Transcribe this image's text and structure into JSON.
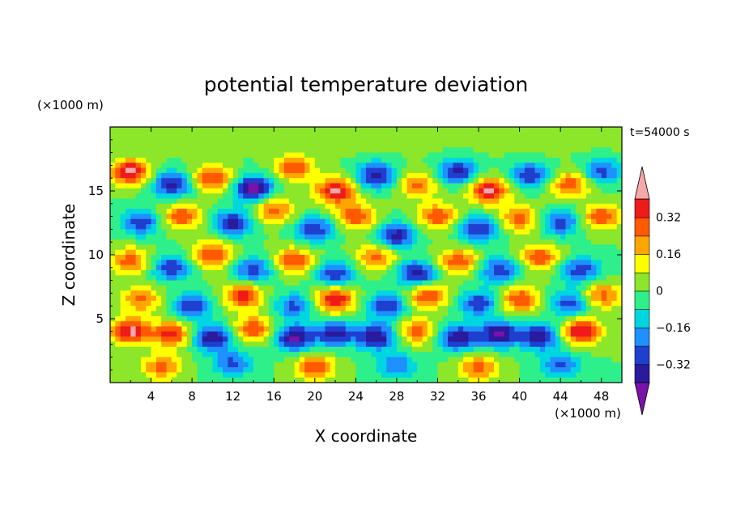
{
  "chart_data": {
    "type": "heatmap",
    "title": "potential temperature deviation",
    "xlabel": "X coordinate",
    "ylabel": "Z coordinate",
    "x_unit_label": "(×1000 m)",
    "y_unit_label": "(×1000 m)",
    "time_label": "t=54000 s",
    "xlim": [
      0,
      50
    ],
    "ylim": [
      0,
      20
    ],
    "x_ticks": [
      "4",
      "8",
      "12",
      "16",
      "20",
      "24",
      "28",
      "32",
      "36",
      "40",
      "44",
      "48"
    ],
    "x_tick_values": [
      4,
      8,
      12,
      16,
      20,
      24,
      28,
      32,
      36,
      40,
      44,
      48
    ],
    "y_ticks": [
      "5",
      "10",
      "15"
    ],
    "y_tick_values": [
      5,
      10,
      15
    ],
    "colorbar": {
      "levels": [
        -0.4,
        -0.32,
        -0.24,
        -0.16,
        -0.08,
        0,
        0.08,
        0.16,
        0.24,
        0.32,
        0.4
      ],
      "tick_labels": [
        "0.32",
        "0.16",
        "0",
        "−0.16",
        "−0.32"
      ],
      "tick_values": [
        0.32,
        0.16,
        0,
        -0.16,
        -0.32
      ],
      "colors": [
        "#7a12a8",
        "#2a1a9e",
        "#1f3fcf",
        "#1e90ff",
        "#00d6e0",
        "#2ef08a",
        "#8ce62a",
        "#ffff00",
        "#ffa500",
        "#ff5a00",
        "#ef1a1a",
        "#f6a8a8"
      ]
    },
    "cells": [
      {
        "x": 2,
        "z": 16.5,
        "v": 0.42
      },
      {
        "x": 6,
        "z": 15.5,
        "v": -0.36
      },
      {
        "x": 10,
        "z": 16,
        "v": 0.34
      },
      {
        "x": 14,
        "z": 15.2,
        "v": -0.44
      },
      {
        "x": 18,
        "z": 16.8,
        "v": 0.3
      },
      {
        "x": 22,
        "z": 15,
        "v": 0.42
      },
      {
        "x": 26,
        "z": 16.2,
        "v": -0.38
      },
      {
        "x": 30,
        "z": 15.5,
        "v": 0.26
      },
      {
        "x": 34,
        "z": 16.5,
        "v": -0.34
      },
      {
        "x": 37,
        "z": 15,
        "v": 0.42
      },
      {
        "x": 41,
        "z": 16.2,
        "v": -0.32
      },
      {
        "x": 45,
        "z": 15.5,
        "v": 0.3
      },
      {
        "x": 48,
        "z": 16.5,
        "v": -0.28
      },
      {
        "x": 3,
        "z": 12.5,
        "v": -0.3
      },
      {
        "x": 7,
        "z": 13,
        "v": 0.3
      },
      {
        "x": 12,
        "z": 12.5,
        "v": -0.36
      },
      {
        "x": 16,
        "z": 13.5,
        "v": 0.28
      },
      {
        "x": 20,
        "z": 12,
        "v": -0.3
      },
      {
        "x": 24,
        "z": 13,
        "v": 0.32
      },
      {
        "x": 28,
        "z": 11.5,
        "v": -0.36
      },
      {
        "x": 32,
        "z": 13,
        "v": 0.3
      },
      {
        "x": 36,
        "z": 12,
        "v": -0.34
      },
      {
        "x": 40,
        "z": 12.8,
        "v": 0.28
      },
      {
        "x": 44,
        "z": 12.5,
        "v": -0.3
      },
      {
        "x": 48,
        "z": 13,
        "v": 0.3
      },
      {
        "x": 2,
        "z": 9.5,
        "v": 0.3
      },
      {
        "x": 6,
        "z": 9,
        "v": -0.32
      },
      {
        "x": 10,
        "z": 10,
        "v": 0.34
      },
      {
        "x": 14,
        "z": 8.8,
        "v": -0.3
      },
      {
        "x": 18,
        "z": 9.5,
        "v": 0.32
      },
      {
        "x": 22,
        "z": 8.5,
        "v": -0.32
      },
      {
        "x": 26,
        "z": 9.8,
        "v": 0.28
      },
      {
        "x": 30,
        "z": 8.5,
        "v": -0.38
      },
      {
        "x": 34,
        "z": 9.5,
        "v": 0.3
      },
      {
        "x": 38,
        "z": 8.8,
        "v": -0.3
      },
      {
        "x": 42,
        "z": 9.8,
        "v": 0.3
      },
      {
        "x": 46,
        "z": 8.8,
        "v": -0.3
      },
      {
        "x": 3,
        "z": 6.5,
        "v": 0.26
      },
      {
        "x": 8,
        "z": 6,
        "v": -0.3
      },
      {
        "x": 13,
        "z": 6.8,
        "v": 0.36
      },
      {
        "x": 18,
        "z": 6,
        "v": -0.26
      },
      {
        "x": 22,
        "z": 6.5,
        "v": 0.4
      },
      {
        "x": 27,
        "z": 6,
        "v": -0.32
      },
      {
        "x": 31,
        "z": 6.8,
        "v": 0.34
      },
      {
        "x": 36,
        "z": 6.2,
        "v": -0.3
      },
      {
        "x": 40,
        "z": 6.5,
        "v": 0.32
      },
      {
        "x": 45,
        "z": 6.2,
        "v": -0.3
      },
      {
        "x": 48,
        "z": 6.8,
        "v": 0.28
      },
      {
        "x": 2,
        "z": 4,
        "v": 0.42
      },
      {
        "x": 6,
        "z": 3.8,
        "v": 0.36
      },
      {
        "x": 10,
        "z": 3.5,
        "v": -0.4
      },
      {
        "x": 14,
        "z": 4.2,
        "v": 0.3
      },
      {
        "x": 18,
        "z": 3.5,
        "v": -0.42
      },
      {
        "x": 22,
        "z": 3.8,
        "v": -0.36
      },
      {
        "x": 26,
        "z": 3.6,
        "v": -0.4
      },
      {
        "x": 30,
        "z": 4,
        "v": 0.28
      },
      {
        "x": 34,
        "z": 3.5,
        "v": -0.4
      },
      {
        "x": 38,
        "z": 3.8,
        "v": -0.42
      },
      {
        "x": 42,
        "z": 3.6,
        "v": -0.38
      },
      {
        "x": 46,
        "z": 4,
        "v": 0.42
      },
      {
        "x": 5,
        "z": 1.2,
        "v": 0.26
      },
      {
        "x": 12,
        "z": 1.5,
        "v": -0.26
      },
      {
        "x": 20,
        "z": 1.2,
        "v": 0.3
      },
      {
        "x": 28,
        "z": 1.3,
        "v": -0.24
      },
      {
        "x": 36,
        "z": 1.2,
        "v": 0.28
      },
      {
        "x": 44,
        "z": 1.4,
        "v": -0.26
      },
      {
        "x": 8,
        "z": 19,
        "v": 0.05
      },
      {
        "x": 25,
        "z": 19.2,
        "v": 0.04
      },
      {
        "x": 42,
        "z": 19,
        "v": 0.05
      }
    ]
  }
}
